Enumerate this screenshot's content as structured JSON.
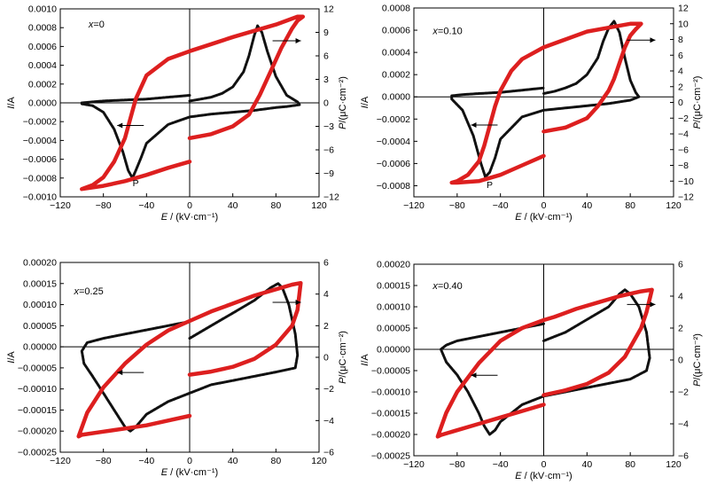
{
  "colors": {
    "current": "#111111",
    "polarization": "#dd1f1f",
    "axis": "#000000"
  },
  "chart_data": [
    {
      "type": "line",
      "label": "x=0",
      "xlabel": {
        "sym": "E",
        "unit": " / (kV·cm⁻¹)"
      },
      "ylabel_left": {
        "sym": "I",
        "unit": "/A"
      },
      "ylabel_right": {
        "sym": "P",
        "unit": "/(μC·cm⁻²)"
      },
      "xlim": [
        -120,
        120
      ],
      "xticks": [
        "−120",
        "−80",
        "−40",
        "0",
        "40",
        "80",
        "120"
      ],
      "xtick_values": [
        -120,
        -80,
        -40,
        0,
        40,
        80,
        120
      ],
      "ylim_left": [
        -0.001,
        0.001
      ],
      "yticks_left": [
        "0.0010",
        "0.0008",
        "0.0006",
        "0.0004",
        "0.0002",
        "0.0000",
        "−0.0002",
        "−0.0004",
        "−0.0006",
        "−0.0008",
        "−0.0010"
      ],
      "ytick_values_left": [
        0.001,
        0.0008,
        0.0006,
        0.0004,
        0.0002,
        0,
        -0.0002,
        -0.0004,
        -0.0006,
        -0.0008,
        -0.001
      ],
      "ylim_right": [
        -12,
        12
      ],
      "yticks_right": [
        "12",
        "9",
        "6",
        "3",
        "0",
        "−3",
        "−6",
        "−9",
        "−12"
      ],
      "ytick_values_right": [
        12,
        9,
        6,
        3,
        0,
        -3,
        -6,
        -9,
        -12
      ],
      "annotation": "P",
      "series": [
        {
          "axis": "left",
          "x": [
            0,
            10,
            20,
            30,
            40,
            50,
            55,
            60,
            63,
            67,
            72,
            80,
            90,
            100,
            102,
            90,
            80,
            60,
            40,
            20,
            0,
            -20,
            -40,
            -45,
            -50,
            -53,
            -57,
            -62,
            -70,
            -80,
            -90,
            -100,
            -100,
            -90,
            -80,
            -60,
            -40,
            -20,
            0
          ],
          "y": [
            2e-05,
            4e-05,
            6e-05,
            0.0001,
            0.00017,
            0.00033,
            0.0005,
            0.00072,
            0.00082,
            0.00075,
            0.00055,
            0.00028,
            8e-05,
            1e-05,
            -2e-05,
            -4e-05,
            -5e-05,
            -8e-05,
            -0.0001,
            -0.00012,
            -0.00015,
            -0.00023,
            -0.00043,
            -0.00058,
            -0.00072,
            -0.0008,
            -0.00072,
            -0.00052,
            -0.00028,
            -0.0001,
            -3e-05,
            -1e-05,
            0,
            1e-05,
            2e-05,
            3e-05,
            4e-05,
            6e-05,
            8e-05
          ]
        },
        {
          "axis": "right",
          "x": [
            0,
            20,
            40,
            55,
            65,
            75,
            85,
            95,
            100,
            105,
            100,
            80,
            60,
            40,
            20,
            0,
            -20,
            -40,
            -50,
            -55,
            -60,
            -70,
            -80,
            -90,
            -100,
            -100,
            -80,
            -60,
            -40,
            -20,
            0
          ],
          "y": [
            -4.5,
            -4,
            -3,
            -1.5,
            1,
            4,
            7,
            9.5,
            10.5,
            11,
            11,
            10,
            9.2,
            8.4,
            7.5,
            6.6,
            5.6,
            3.5,
            0.5,
            -2,
            -4.5,
            -7.5,
            -9.5,
            -10.5,
            -11,
            -11,
            -10.6,
            -10,
            -9.2,
            -8.3,
            -7.5
          ]
        }
      ]
    },
    {
      "type": "line",
      "label": "x=0.10",
      "xlabel": {
        "sym": "E",
        "unit": " / (kV·cm⁻¹)"
      },
      "ylabel_left": {
        "sym": "I",
        "unit": "/A"
      },
      "ylabel_right": {
        "sym": "P",
        "unit": "/(μC·cm⁻²)"
      },
      "xlim": [
        -120,
        120
      ],
      "xticks": [
        "−120",
        "−80",
        "−40",
        "0",
        "40",
        "80",
        "120"
      ],
      "xtick_values": [
        -120,
        -80,
        -40,
        0,
        40,
        80,
        120
      ],
      "ylim_left": [
        -0.0009,
        0.0008
      ],
      "yticks_left": [
        "0.0008",
        "0.0006",
        "0.0004",
        "0.0002",
        "0.0000",
        "−0.0002",
        "−0.0004",
        "−0.0006",
        "−0.0008"
      ],
      "ytick_values_left": [
        0.0008,
        0.0006,
        0.0004,
        0.0002,
        0,
        -0.0002,
        -0.0004,
        -0.0006,
        -0.0008
      ],
      "ylim_right": [
        -12,
        12
      ],
      "yticks_right": [
        "12",
        "10",
        "8",
        "6",
        "4",
        "2",
        "0",
        "−2",
        "−4",
        "−6",
        "−8",
        "−10",
        "−12"
      ],
      "ytick_values_right": [
        12,
        10,
        8,
        6,
        4,
        2,
        0,
        -2,
        -4,
        -6,
        -8,
        -10,
        -12
      ],
      "annotation": "P",
      "series": [
        {
          "axis": "left",
          "x": [
            0,
            10,
            20,
            30,
            40,
            50,
            55,
            60,
            65,
            70,
            75,
            80,
            85,
            88,
            80,
            60,
            40,
            20,
            0,
            -20,
            -40,
            -45,
            -50,
            -54,
            -58,
            -65,
            -75,
            -85,
            -85,
            -75,
            -60,
            -40,
            -20,
            0
          ],
          "y": [
            3e-05,
            5e-05,
            8e-05,
            0.00012,
            0.0002,
            0.00035,
            0.0005,
            0.00062,
            0.00068,
            0.00058,
            0.00035,
            0.00015,
            4e-05,
            0,
            -3e-05,
            -6e-05,
            -8e-05,
            -0.0001,
            -0.00012,
            -0.00018,
            -0.00038,
            -0.00055,
            -0.00068,
            -0.00072,
            -0.0006,
            -0.00035,
            -0.00012,
            -2e-05,
            1e-05,
            2e-05,
            3e-05,
            4e-05,
            6e-05,
            8e-05
          ]
        },
        {
          "axis": "right",
          "x": [
            0,
            20,
            40,
            50,
            60,
            65,
            70,
            75,
            80,
            85,
            90,
            80,
            60,
            40,
            20,
            0,
            -20,
            -30,
            -40,
            -45,
            -50,
            -55,
            -60,
            -70,
            -80,
            -85,
            -80,
            -60,
            -40,
            -20,
            0
          ],
          "y": [
            -3.7,
            -3.2,
            -2,
            -0.5,
            1.5,
            3,
            5,
            7,
            8.5,
            9.3,
            10,
            10,
            9.5,
            9,
            8,
            7,
            5.5,
            4,
            1.5,
            -0.5,
            -3,
            -5.5,
            -7.5,
            -9.2,
            -10,
            -10.2,
            -10.2,
            -10,
            -9.2,
            -8,
            -6.8
          ]
        }
      ]
    },
    {
      "type": "line",
      "label": "x=0.25",
      "xlabel": {
        "sym": "E",
        "unit": " / (kV·cm⁻¹)"
      },
      "ylabel_left": {
        "sym": "I",
        "unit": "/A"
      },
      "ylabel_right": {
        "sym": "P",
        "unit": "/(μC·cm⁻²)"
      },
      "xlim": [
        -120,
        120
      ],
      "xticks": [
        "−120",
        "−80",
        "−40",
        "0",
        "40",
        "80",
        "120"
      ],
      "xtick_values": [
        -120,
        -80,
        -40,
        0,
        40,
        80,
        120
      ],
      "ylim_left": [
        -0.00025,
        0.0002
      ],
      "yticks_left": [
        "0.00020",
        "0.00015",
        "0.00010",
        "0.00005",
        "0.00000",
        "−0.00005",
        "−0.00010",
        "−0.00015",
        "−0.00020",
        "−0.00025"
      ],
      "ytick_values_left": [
        0.0002,
        0.00015,
        0.0001,
        5e-05,
        0,
        -5e-05,
        -0.0001,
        -0.00015,
        -0.0002,
        -0.00025
      ],
      "ylim_right": [
        -6,
        6
      ],
      "yticks_right": [
        "6",
        "4",
        "2",
        "0",
        "−2",
        "−4",
        "−6"
      ],
      "ytick_values_right": [
        6,
        4,
        2,
        0,
        -2,
        -4,
        -6
      ],
      "annotation": "",
      "series": [
        {
          "axis": "left",
          "x": [
            0,
            20,
            40,
            60,
            75,
            82,
            86,
            92,
            98,
            100,
            98,
            80,
            60,
            40,
            20,
            0,
            -20,
            -40,
            -50,
            -55,
            -60,
            -70,
            -80,
            -90,
            -98,
            -100,
            -95,
            -80,
            -60,
            -40,
            -20,
            0
          ],
          "y": [
            2e-05,
            5e-05,
            8e-05,
            0.00011,
            0.00014,
            0.00015,
            0.00014,
            0.0001,
            3e-05,
            -2e-05,
            -5e-05,
            -6e-05,
            -7e-05,
            -8e-05,
            -9e-05,
            -0.00011,
            -0.00013,
            -0.00016,
            -0.00019,
            -0.0002,
            -0.00019,
            -0.00015,
            -0.00011,
            -7e-05,
            -4e-05,
            -1e-05,
            1e-05,
            2e-05,
            3e-05,
            4e-05,
            5e-05,
            6e-05
          ]
        },
        {
          "axis": "right",
          "x": [
            0,
            20,
            40,
            60,
            80,
            95,
            100,
            103,
            95,
            80,
            60,
            40,
            20,
            0,
            -20,
            -40,
            -60,
            -80,
            -95,
            -103,
            -100,
            -80,
            -60,
            -40,
            -20,
            0
          ],
          "y": [
            -1.1,
            -0.9,
            -0.6,
            -0.1,
            0.8,
            2,
            3,
            4.7,
            4.6,
            4.3,
            3.9,
            3.4,
            2.9,
            2.3,
            1.7,
            0.8,
            -0.4,
            -1.9,
            -3.5,
            -5,
            -4.9,
            -4.7,
            -4.5,
            -4.3,
            -4,
            -3.7
          ]
        }
      ]
    },
    {
      "type": "line",
      "label": "x=0.40",
      "xlabel": {
        "sym": "E",
        "unit": " / (kV·cm⁻¹)"
      },
      "ylabel_left": {
        "sym": "I",
        "unit": "/A"
      },
      "ylabel_right": {
        "sym": "P",
        "unit": "/(μC·cm⁻²)"
      },
      "xlim": [
        -120,
        120
      ],
      "xticks": [
        "−120",
        "−80",
        "−40",
        "0",
        "40",
        "80",
        "120"
      ],
      "xtick_values": [
        -120,
        -80,
        -40,
        0,
        40,
        80,
        120
      ],
      "ylim_left": [
        -0.00025,
        0.0002
      ],
      "yticks_left": [
        "0.00020",
        "0.00015",
        "0.00010",
        "0.00005",
        "0.00000",
        "−0.00005",
        "−0.00010",
        "−0.00015",
        "−0.00020",
        "−0.00025"
      ],
      "ytick_values_left": [
        0.0002,
        0.00015,
        0.0001,
        5e-05,
        0,
        -5e-05,
        -0.0001,
        -0.00015,
        -0.0002,
        -0.00025
      ],
      "ylim_right": [
        -6,
        6
      ],
      "yticks_right": [
        "6",
        "4",
        "2",
        "0",
        "−2",
        "−4",
        "−6"
      ],
      "ytick_values_right": [
        6,
        4,
        2,
        0,
        -2,
        -4,
        -6
      ],
      "annotation": "",
      "series": [
        {
          "axis": "left",
          "x": [
            0,
            20,
            40,
            60,
            70,
            75,
            80,
            88,
            95,
            98,
            95,
            80,
            60,
            40,
            20,
            0,
            -20,
            -30,
            -40,
            -45,
            -50,
            -55,
            -60,
            -70,
            -80,
            -90,
            -95,
            -90,
            -80,
            -60,
            -40,
            -20,
            0
          ],
          "y": [
            2e-05,
            4e-05,
            7e-05,
            0.0001,
            0.00013,
            0.00014,
            0.00013,
            0.0001,
            4e-05,
            -2e-05,
            -5e-05,
            -7e-05,
            -8e-05,
            -9e-05,
            -0.0001,
            -0.00011,
            -0.00013,
            -0.00015,
            -0.00017,
            -0.00019,
            -0.0002,
            -0.00018,
            -0.00015,
            -0.0001,
            -6e-05,
            -3e-05,
            0,
            1e-05,
            2e-05,
            3e-05,
            4e-05,
            5e-05,
            6e-05
          ]
        },
        {
          "axis": "right",
          "x": [
            0,
            20,
            40,
            60,
            75,
            90,
            95,
            100,
            90,
            70,
            50,
            30,
            10,
            0,
            -20,
            -40,
            -60,
            -80,
            -90,
            -98,
            -95,
            -80,
            -60,
            -40,
            -20,
            0
          ],
          "y": [
            -2.2,
            -1.9,
            -1.5,
            -0.8,
            0.2,
            2,
            3,
            4.4,
            4.3,
            4,
            3.6,
            3.2,
            2.7,
            2.5,
            2,
            1.2,
            -0.2,
            -2,
            -3.3,
            -4.8,
            -4.7,
            -4.4,
            -4,
            -3.6,
            -3.2,
            -2.8
          ]
        }
      ]
    }
  ]
}
